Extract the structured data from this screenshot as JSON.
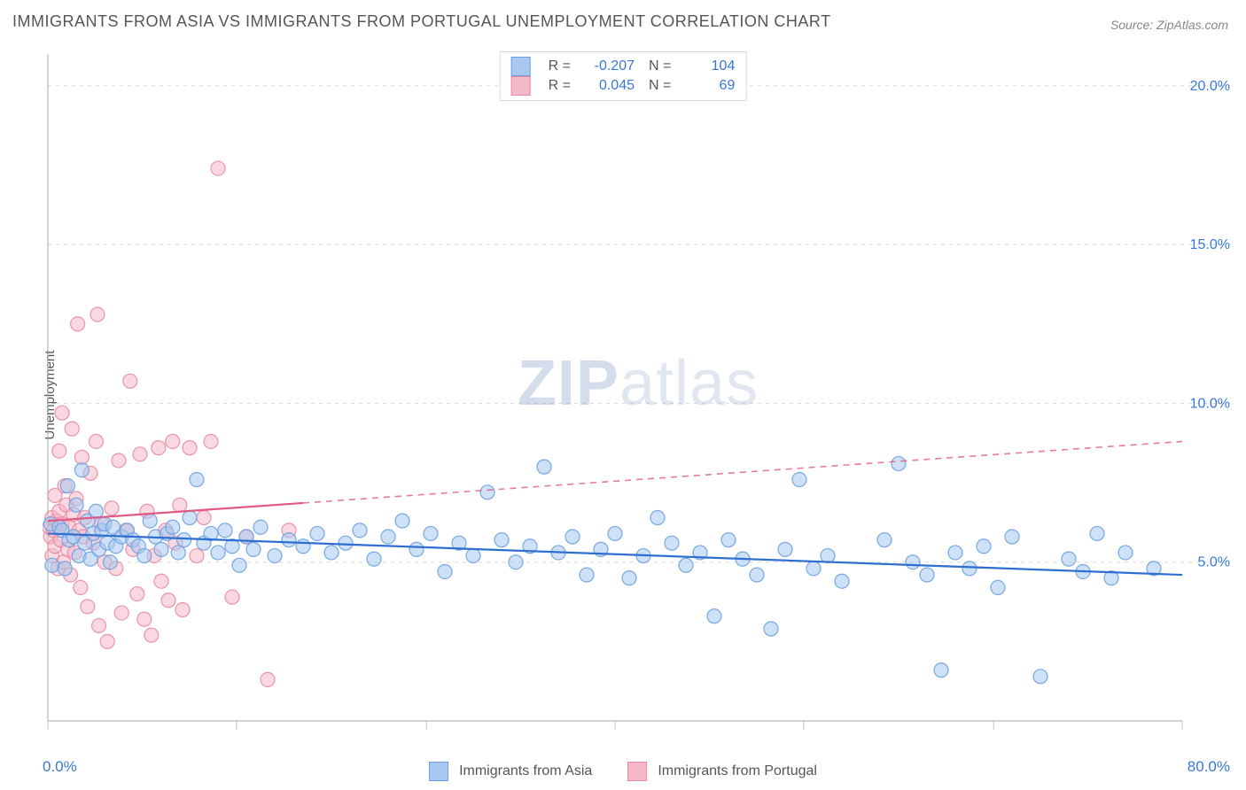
{
  "title": "IMMIGRANTS FROM ASIA VS IMMIGRANTS FROM PORTUGAL UNEMPLOYMENT CORRELATION CHART",
  "source_label": "Source:",
  "source_name": "ZipAtlas.com",
  "ylabel": "Unemployment",
  "watermark_a": "ZIP",
  "watermark_b": "atlas",
  "chart": {
    "type": "scatter",
    "background_color": "#ffffff",
    "grid_color": "#d8d8d8",
    "axis_color": "#a8a8a8",
    "tick_color": "#c4c4c4",
    "axis_label_color": "#3878d8",
    "xlim": [
      0,
      80
    ],
    "ylim": [
      0,
      21
    ],
    "x_axis_min_label": "0.0%",
    "x_axis_max_label": "80.0%",
    "y_gridlines": [
      5,
      10,
      15,
      20
    ],
    "y_gridline_labels": [
      "5.0%",
      "10.0%",
      "15.0%",
      "20.0%"
    ],
    "x_ticks": [
      0,
      13.3,
      26.7,
      40,
      53.3,
      66.7,
      80
    ],
    "marker_radius": 8,
    "marker_opacity": 0.55,
    "trendline_width": 2.2,
    "series": [
      {
        "name": "Immigrants from Asia",
        "fill_color": "#a8c8ef",
        "stroke_color": "#6aa0e0",
        "trend_color": "#2f6fd0",
        "R": "-0.207",
        "N": "104",
        "trend_start_y": 5.9,
        "trend_end_y": 4.6,
        "trend_dash_from_x": 80,
        "data": [
          [
            0.2,
            6.2
          ],
          [
            0.3,
            4.9
          ],
          [
            0.8,
            6.1
          ],
          [
            1.0,
            6.0
          ],
          [
            1.2,
            4.8
          ],
          [
            1.4,
            7.4
          ],
          [
            1.5,
            5.7
          ],
          [
            1.8,
            5.8
          ],
          [
            2.0,
            6.8
          ],
          [
            2.2,
            5.2
          ],
          [
            2.4,
            7.9
          ],
          [
            2.6,
            5.6
          ],
          [
            2.8,
            6.3
          ],
          [
            3.0,
            5.1
          ],
          [
            3.2,
            5.9
          ],
          [
            3.4,
            6.6
          ],
          [
            3.6,
            5.4
          ],
          [
            3.8,
            6.0
          ],
          [
            4.0,
            6.2
          ],
          [
            4.2,
            5.6
          ],
          [
            4.4,
            5.0
          ],
          [
            4.6,
            6.1
          ],
          [
            4.8,
            5.5
          ],
          [
            5.2,
            5.8
          ],
          [
            5.6,
            6.0
          ],
          [
            6.0,
            5.7
          ],
          [
            6.4,
            5.5
          ],
          [
            6.8,
            5.2
          ],
          [
            7.2,
            6.3
          ],
          [
            7.6,
            5.8
          ],
          [
            8.0,
            5.4
          ],
          [
            8.4,
            5.9
          ],
          [
            8.8,
            6.1
          ],
          [
            9.2,
            5.3
          ],
          [
            9.6,
            5.7
          ],
          [
            10.0,
            6.4
          ],
          [
            10.5,
            7.6
          ],
          [
            11.0,
            5.6
          ],
          [
            11.5,
            5.9
          ],
          [
            12.0,
            5.3
          ],
          [
            12.5,
            6.0
          ],
          [
            13.0,
            5.5
          ],
          [
            13.5,
            4.9
          ],
          [
            14.0,
            5.8
          ],
          [
            14.5,
            5.4
          ],
          [
            15.0,
            6.1
          ],
          [
            16.0,
            5.2
          ],
          [
            17.0,
            5.7
          ],
          [
            18.0,
            5.5
          ],
          [
            19.0,
            5.9
          ],
          [
            20.0,
            5.3
          ],
          [
            21.0,
            5.6
          ],
          [
            22.0,
            6.0
          ],
          [
            23.0,
            5.1
          ],
          [
            24.0,
            5.8
          ],
          [
            25.0,
            6.3
          ],
          [
            26.0,
            5.4
          ],
          [
            27.0,
            5.9
          ],
          [
            28.0,
            4.7
          ],
          [
            29.0,
            5.6
          ],
          [
            30.0,
            5.2
          ],
          [
            31.0,
            7.2
          ],
          [
            32.0,
            5.7
          ],
          [
            33.0,
            5.0
          ],
          [
            34.0,
            5.5
          ],
          [
            35.0,
            8.0
          ],
          [
            36.0,
            5.3
          ],
          [
            37.0,
            5.8
          ],
          [
            38.0,
            4.6
          ],
          [
            39.0,
            5.4
          ],
          [
            40.0,
            5.9
          ],
          [
            41.0,
            4.5
          ],
          [
            42.0,
            5.2
          ],
          [
            43.0,
            6.4
          ],
          [
            44.0,
            5.6
          ],
          [
            45.0,
            4.9
          ],
          [
            46.0,
            5.3
          ],
          [
            47.0,
            3.3
          ],
          [
            48.0,
            5.7
          ],
          [
            49.0,
            5.1
          ],
          [
            50.0,
            4.6
          ],
          [
            51.0,
            2.9
          ],
          [
            52.0,
            5.4
          ],
          [
            53.0,
            7.6
          ],
          [
            54.0,
            4.8
          ],
          [
            55.0,
            5.2
          ],
          [
            56.0,
            4.4
          ],
          [
            59.0,
            5.7
          ],
          [
            60.0,
            8.1
          ],
          [
            61.0,
            5.0
          ],
          [
            62.0,
            4.6
          ],
          [
            63.0,
            1.6
          ],
          [
            64.0,
            5.3
          ],
          [
            65.0,
            4.8
          ],
          [
            66.0,
            5.5
          ],
          [
            67.0,
            4.2
          ],
          [
            68.0,
            5.8
          ],
          [
            70.0,
            1.4
          ],
          [
            72.0,
            5.1
          ],
          [
            73.0,
            4.7
          ],
          [
            74.0,
            5.9
          ],
          [
            75.0,
            4.5
          ],
          [
            76.0,
            5.3
          ],
          [
            78.0,
            4.8
          ]
        ]
      },
      {
        "name": "Immigrants from Portugal",
        "fill_color": "#f5b8c8",
        "stroke_color": "#e88aa2",
        "trend_color": "#e05a85",
        "R": "0.045",
        "N": "69",
        "trend_start_y": 6.3,
        "trend_end_y": 8.8,
        "trend_dash_from_x": 18,
        "data": [
          [
            0.1,
            6.1
          ],
          [
            0.2,
            5.8
          ],
          [
            0.3,
            6.4
          ],
          [
            0.3,
            5.2
          ],
          [
            0.4,
            6.0
          ],
          [
            0.5,
            7.1
          ],
          [
            0.5,
            5.5
          ],
          [
            0.6,
            6.3
          ],
          [
            0.7,
            4.8
          ],
          [
            0.8,
            6.6
          ],
          [
            0.8,
            8.5
          ],
          [
            0.9,
            5.7
          ],
          [
            1.0,
            6.2
          ],
          [
            1.0,
            9.7
          ],
          [
            1.1,
            5.0
          ],
          [
            1.2,
            7.4
          ],
          [
            1.3,
            6.8
          ],
          [
            1.4,
            5.4
          ],
          [
            1.5,
            6.1
          ],
          [
            1.6,
            4.6
          ],
          [
            1.7,
            9.2
          ],
          [
            1.8,
            6.5
          ],
          [
            1.9,
            5.3
          ],
          [
            2.0,
            7.0
          ],
          [
            2.1,
            12.5
          ],
          [
            2.2,
            6.0
          ],
          [
            2.3,
            4.2
          ],
          [
            2.4,
            8.3
          ],
          [
            2.5,
            5.8
          ],
          [
            2.6,
            6.4
          ],
          [
            2.8,
            3.6
          ],
          [
            3.0,
            7.8
          ],
          [
            3.2,
            5.6
          ],
          [
            3.4,
            8.8
          ],
          [
            3.5,
            12.8
          ],
          [
            3.6,
            3.0
          ],
          [
            3.8,
            6.2
          ],
          [
            4.0,
            5.0
          ],
          [
            4.2,
            2.5
          ],
          [
            4.5,
            6.7
          ],
          [
            4.8,
            4.8
          ],
          [
            5.0,
            8.2
          ],
          [
            5.2,
            3.4
          ],
          [
            5.5,
            6.0
          ],
          [
            5.8,
            10.7
          ],
          [
            6.0,
            5.4
          ],
          [
            6.3,
            4.0
          ],
          [
            6.5,
            8.4
          ],
          [
            6.8,
            3.2
          ],
          [
            7.0,
            6.6
          ],
          [
            7.3,
            2.7
          ],
          [
            7.5,
            5.2
          ],
          [
            7.8,
            8.6
          ],
          [
            8.0,
            4.4
          ],
          [
            8.3,
            6.0
          ],
          [
            8.5,
            3.8
          ],
          [
            8.8,
            8.8
          ],
          [
            9.0,
            5.6
          ],
          [
            9.3,
            6.8
          ],
          [
            9.5,
            3.5
          ],
          [
            10.0,
            8.6
          ],
          [
            10.5,
            5.2
          ],
          [
            11.0,
            6.4
          ],
          [
            11.5,
            8.8
          ],
          [
            12.0,
            17.4
          ],
          [
            13.0,
            3.9
          ],
          [
            14.0,
            5.8
          ],
          [
            15.5,
            1.3
          ],
          [
            17.0,
            6.0
          ]
        ]
      }
    ]
  },
  "legend_bottom": [
    {
      "label": "Immigrants from Asia",
      "fill": "#a8c8ef",
      "stroke": "#6aa0e0"
    },
    {
      "label": "Immigrants from Portugal",
      "fill": "#f5b8c8",
      "stroke": "#e88aa2"
    }
  ]
}
